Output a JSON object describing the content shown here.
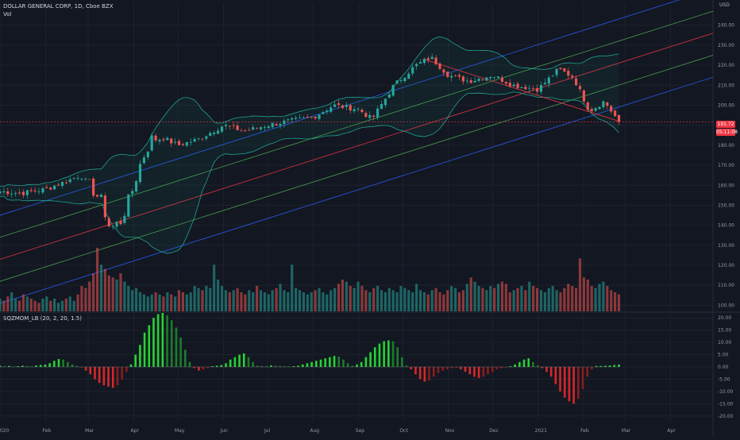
{
  "header": {
    "symbol_title": "DOLLAR GENERAL CORP, 1D, Cboe BZX",
    "volume_label": "Vol",
    "indicator_label": "SQZMOM_LB (20, 2, 20, 1.5)",
    "currency": "USD"
  },
  "badges": {
    "last_price": "191.72",
    "countdown": "05:11:08"
  },
  "colors": {
    "background": "#131722",
    "up": "#26a69a",
    "down": "#ef5350",
    "channel_outer": "#2962ff",
    "channel_mid": "#4caf50",
    "channel_center": "#f23645",
    "bollinger": "#1fa390",
    "mom_up_strong": "#26d334",
    "mom_down_strong": "#d62828",
    "last_price_line": "#f23645"
  },
  "chart_data": [
    {
      "type": "candlestick",
      "yaxis": {
        "ticks": [
          100,
          110,
          120,
          130,
          140,
          150,
          160,
          170,
          180,
          190,
          200,
          210,
          220,
          230,
          240
        ],
        "range": [
          97,
          251
        ]
      },
      "xaxis": {
        "ticks": [
          "2020",
          "Feb",
          "Mar",
          "Apr",
          "May",
          "Jun",
          "Jul",
          "Aug",
          "Sep",
          "Oct",
          "Nov",
          "Dec",
          "2021",
          "Feb",
          "Mar",
          "Apr"
        ]
      },
      "price_path": [
        [
          "2020-01-01",
          157
        ],
        [
          "2020-01-15",
          156
        ],
        [
          "2020-02-01",
          158
        ],
        [
          "2020-02-15",
          162
        ],
        [
          "2020-02-25",
          165
        ],
        [
          "2020-03-05",
          157
        ],
        [
          "2020-03-10",
          152
        ],
        [
          "2020-03-16",
          138
        ],
        [
          "2020-03-23",
          142
        ],
        [
          "2020-03-30",
          155
        ],
        [
          "2020-04-06",
          172
        ],
        [
          "2020-04-13",
          183
        ],
        [
          "2020-04-20",
          184
        ],
        [
          "2020-05-01",
          180
        ],
        [
          "2020-05-15",
          183
        ],
        [
          "2020-06-01",
          190
        ],
        [
          "2020-06-15",
          187
        ],
        [
          "2020-07-01",
          190
        ],
        [
          "2020-07-15",
          192
        ],
        [
          "2020-08-01",
          194
        ],
        [
          "2020-08-15",
          200
        ],
        [
          "2020-09-01",
          198
        ],
        [
          "2020-09-10",
          193
        ],
        [
          "2020-09-25",
          210
        ],
        [
          "2020-10-10",
          220
        ],
        [
          "2020-10-20",
          224
        ],
        [
          "2020-11-01",
          215
        ],
        [
          "2020-11-15",
          212
        ],
        [
          "2020-12-01",
          215
        ],
        [
          "2020-12-15",
          210
        ],
        [
          "2021-01-01",
          208
        ],
        [
          "2021-01-15",
          218
        ],
        [
          "2021-01-25",
          214
        ],
        [
          "2021-02-05",
          197
        ],
        [
          "2021-02-15",
          202
        ],
        [
          "2021-02-25",
          191.72
        ]
      ],
      "channel": {
        "center": [
          [
            "2020-01-01",
            123
          ],
          [
            "2021-04-30",
            236
          ]
        ],
        "offsets": [
          -22,
          -11,
          11,
          22
        ]
      },
      "regression_segment": [
        [
          "2020-10-15",
          223
        ],
        [
          "2021-02-25",
          192
        ]
      ],
      "last_price": 191.72
    },
    {
      "type": "bar",
      "name": "Vol",
      "values": [
        6,
        5,
        7,
        9,
        6,
        5,
        8,
        7,
        6,
        5,
        4,
        6,
        7,
        5,
        6,
        4,
        5,
        6,
        7,
        5,
        8,
        12,
        11,
        14,
        18,
        30,
        22,
        20,
        17,
        16,
        15,
        18,
        14,
        12,
        10,
        11,
        9,
        8,
        7,
        8,
        9,
        8,
        7,
        9,
        8,
        7,
        10,
        9,
        8,
        9,
        12,
        11,
        10,
        12,
        11,
        22,
        15,
        12,
        10,
        9,
        10,
        11,
        9,
        8,
        10,
        9,
        12,
        10,
        9,
        8,
        10,
        11,
        13,
        10,
        9,
        22,
        11,
        10,
        9,
        8,
        9,
        10,
        11,
        9,
        8,
        10,
        11,
        13,
        15,
        14,
        12,
        11,
        14,
        12,
        10,
        9,
        11,
        12,
        10,
        9,
        11,
        10,
        9,
        12,
        11,
        10,
        9,
        13,
        10,
        9,
        8,
        10,
        11,
        9,
        8,
        10,
        12,
        11,
        9,
        10,
        13,
        16,
        14,
        12,
        11,
        10,
        12,
        11,
        13,
        14,
        13,
        9,
        10,
        11,
        12,
        10,
        14,
        12,
        11,
        10,
        9,
        11,
        12,
        10,
        9,
        11,
        13,
        12,
        11,
        25,
        16,
        15,
        12,
        11,
        13,
        14,
        12,
        10,
        9,
        8
      ]
    },
    {
      "type": "bar",
      "name": "SQZMOM_LB (20, 2, 20, 1.5)",
      "yaxis": {
        "ticks": [
          20,
          15,
          10,
          5,
          0,
          -5,
          -10,
          -15,
          -20
        ],
        "range": [
          -22,
          22
        ]
      },
      "values": [
        0.5,
        0.3,
        0.4,
        0.2,
        0.3,
        0.5,
        0.4,
        0.3,
        0.6,
        0.8,
        1,
        1.5,
        2.5,
        3.2,
        3,
        2,
        1,
        0.4,
        -0.2,
        -1.5,
        -3,
        -5,
        -6.5,
        -7.5,
        -8,
        -8.5,
        -7.5,
        -5,
        -2,
        1,
        5,
        9,
        14,
        17,
        20,
        21.5,
        22,
        21,
        19,
        16,
        12,
        7,
        2,
        -0.5,
        -1.5,
        -1,
        -0.5,
        0.3,
        0.5,
        0.8,
        1.5,
        3,
        4,
        5,
        5.5,
        4,
        2,
        0.5,
        0.4,
        0.3,
        0.6,
        0.5,
        0.4,
        0.3,
        0.2,
        0.3,
        0.5,
        1,
        1.5,
        2,
        2.5,
        3,
        3.5,
        4,
        4.5,
        4.2,
        3,
        1.5,
        0.5,
        1,
        2,
        4,
        6,
        8,
        9.5,
        10.5,
        10.8,
        10.5,
        8,
        4,
        0.5,
        -1,
        -3,
        -5,
        -6,
        -5.5,
        -4,
        -2.5,
        -1.5,
        -1,
        -0.5,
        -0.3,
        -1,
        -2,
        -3,
        -4,
        -4.5,
        -4,
        -3,
        -2,
        -1,
        -0.5,
        -0.3,
        0.3,
        1,
        2,
        3,
        3.5,
        2,
        0.6,
        -0.5,
        -2,
        -4,
        -7,
        -10,
        -12.5,
        -14,
        -15,
        -13,
        -9,
        -4,
        -1,
        0.4,
        0.4,
        0.5,
        0.6,
        0.8,
        1
      ]
    }
  ]
}
